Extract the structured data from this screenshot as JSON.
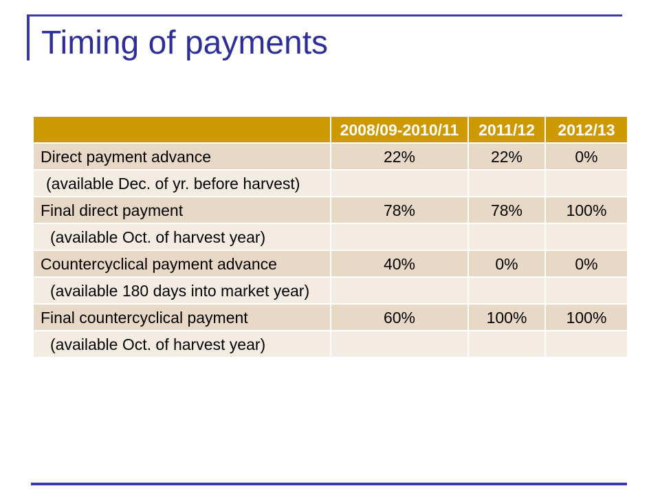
{
  "slide": {
    "title": "Timing of payments"
  },
  "table": {
    "headers": [
      "2008/09-2010/11",
      "2011/12",
      "2012/13"
    ],
    "rows": [
      {
        "label": "Direct payment advance",
        "values": [
          "22%",
          "22%",
          "0%"
        ],
        "note": "(available Dec. of yr. before harvest)"
      },
      {
        "label": "Final direct payment",
        "values": [
          "78%",
          "78%",
          "100%"
        ],
        "note": "(available Oct. of harvest year)"
      },
      {
        "label": "Countercyclical payment advance",
        "values": [
          "40%",
          "0%",
          "0%"
        ],
        "note": "(available 180 days into market year)"
      },
      {
        "label": "Final countercyclical payment",
        "values": [
          "60%",
          "100%",
          "100%"
        ],
        "note": "(available Oct. of harvest year)"
      }
    ]
  },
  "colors": {
    "title": "#2E2E99",
    "rule": "#3939AE",
    "header_bg": "#CC9900",
    "header_text": "#FFFFFF",
    "row_dark": "#E8D8C6",
    "row_light": "#F4ECE3"
  }
}
